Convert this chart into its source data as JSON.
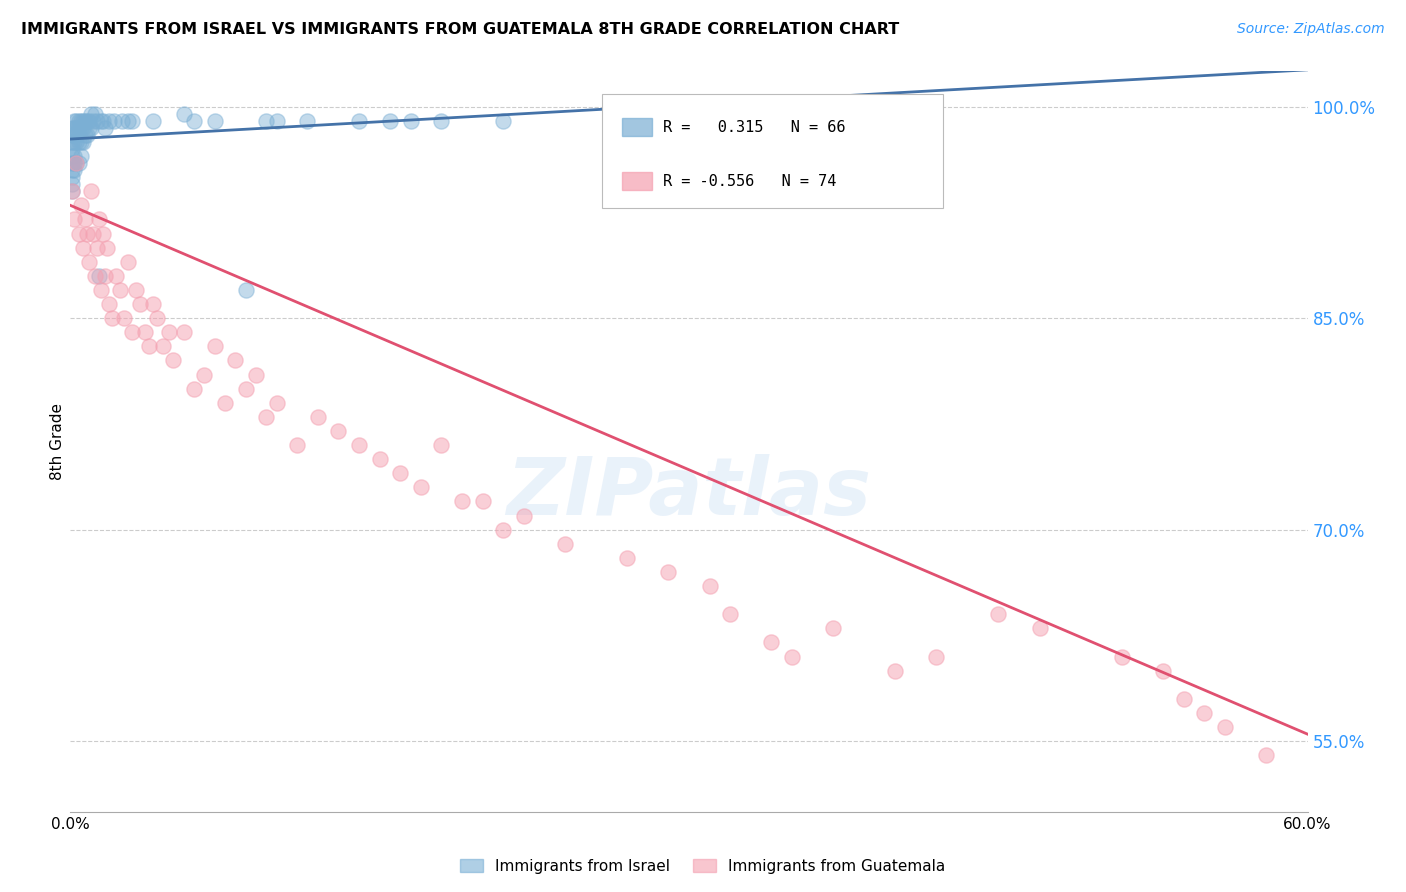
{
  "title": "IMMIGRANTS FROM ISRAEL VS IMMIGRANTS FROM GUATEMALA 8TH GRADE CORRELATION CHART",
  "source": "Source: ZipAtlas.com",
  "ylabel": "8th Grade",
  "watermark": "ZIPatlas",
  "xlim": [
    0.0,
    0.6
  ],
  "ylim": [
    0.5,
    1.025
  ],
  "x_ticks": [
    0.0,
    0.1,
    0.2,
    0.3,
    0.4,
    0.5,
    0.6
  ],
  "x_tick_labels": [
    "0.0%",
    "",
    "",
    "",
    "",
    "",
    "60.0%"
  ],
  "y_ticks_right": [
    0.55,
    0.7,
    0.85,
    1.0
  ],
  "y_tick_labels_right": [
    "55.0%",
    "70.0%",
    "85.0%",
    "100.0%"
  ],
  "grid_color": "#cccccc",
  "blue_color": "#7bafd4",
  "pink_color": "#f4a0b0",
  "blue_line_color": "#4472a8",
  "pink_line_color": "#e05070",
  "blue_r": 0.315,
  "blue_n": 66,
  "pink_r": -0.556,
  "pink_n": 74,
  "legend_label_blue": "Immigrants from Israel",
  "legend_label_pink": "Immigrants from Guatemala",
  "israel_x": [
    0.001,
    0.001,
    0.001,
    0.001,
    0.001,
    0.001,
    0.001,
    0.001,
    0.001,
    0.001,
    0.002,
    0.002,
    0.002,
    0.002,
    0.002,
    0.002,
    0.002,
    0.003,
    0.003,
    0.003,
    0.003,
    0.003,
    0.004,
    0.004,
    0.004,
    0.004,
    0.005,
    0.005,
    0.005,
    0.005,
    0.006,
    0.006,
    0.006,
    0.007,
    0.007,
    0.008,
    0.008,
    0.009,
    0.009,
    0.01,
    0.01,
    0.011,
    0.012,
    0.013,
    0.014,
    0.015,
    0.016,
    0.017,
    0.019,
    0.021,
    0.025,
    0.028,
    0.03,
    0.04,
    0.055,
    0.06,
    0.07,
    0.085,
    0.095,
    0.1,
    0.115,
    0.14,
    0.155,
    0.165,
    0.18,
    0.21
  ],
  "israel_y": [
    0.985,
    0.98,
    0.975,
    0.97,
    0.965,
    0.96,
    0.955,
    0.95,
    0.945,
    0.94,
    0.99,
    0.985,
    0.98,
    0.975,
    0.965,
    0.96,
    0.955,
    0.99,
    0.985,
    0.98,
    0.975,
    0.96,
    0.99,
    0.985,
    0.975,
    0.96,
    0.99,
    0.985,
    0.975,
    0.965,
    0.99,
    0.985,
    0.975,
    0.99,
    0.98,
    0.99,
    0.98,
    0.99,
    0.985,
    0.995,
    0.985,
    0.99,
    0.995,
    0.99,
    0.88,
    0.99,
    0.99,
    0.985,
    0.99,
    0.99,
    0.99,
    0.99,
    0.99,
    0.99,
    0.995,
    0.99,
    0.99,
    0.87,
    0.99,
    0.99,
    0.99,
    0.99,
    0.99,
    0.99,
    0.99,
    0.99
  ],
  "guatemala_x": [
    0.001,
    0.002,
    0.003,
    0.004,
    0.005,
    0.006,
    0.007,
    0.008,
    0.009,
    0.01,
    0.011,
    0.012,
    0.013,
    0.014,
    0.015,
    0.016,
    0.017,
    0.018,
    0.019,
    0.02,
    0.022,
    0.024,
    0.026,
    0.028,
    0.03,
    0.032,
    0.034,
    0.036,
    0.038,
    0.04,
    0.042,
    0.045,
    0.048,
    0.05,
    0.055,
    0.06,
    0.065,
    0.07,
    0.075,
    0.08,
    0.085,
    0.09,
    0.095,
    0.1,
    0.11,
    0.12,
    0.13,
    0.14,
    0.15,
    0.16,
    0.17,
    0.18,
    0.19,
    0.2,
    0.21,
    0.22,
    0.24,
    0.27,
    0.29,
    0.31,
    0.32,
    0.34,
    0.35,
    0.37,
    0.4,
    0.42,
    0.45,
    0.47,
    0.51,
    0.53,
    0.54,
    0.55,
    0.56,
    0.58
  ],
  "guatemala_y": [
    0.94,
    0.92,
    0.96,
    0.91,
    0.93,
    0.9,
    0.92,
    0.91,
    0.89,
    0.94,
    0.91,
    0.88,
    0.9,
    0.92,
    0.87,
    0.91,
    0.88,
    0.9,
    0.86,
    0.85,
    0.88,
    0.87,
    0.85,
    0.89,
    0.84,
    0.87,
    0.86,
    0.84,
    0.83,
    0.86,
    0.85,
    0.83,
    0.84,
    0.82,
    0.84,
    0.8,
    0.81,
    0.83,
    0.79,
    0.82,
    0.8,
    0.81,
    0.78,
    0.79,
    0.76,
    0.78,
    0.77,
    0.76,
    0.75,
    0.74,
    0.73,
    0.76,
    0.72,
    0.72,
    0.7,
    0.71,
    0.69,
    0.68,
    0.67,
    0.66,
    0.64,
    0.62,
    0.61,
    0.63,
    0.6,
    0.61,
    0.64,
    0.63,
    0.61,
    0.6,
    0.58,
    0.57,
    0.56,
    0.54
  ]
}
